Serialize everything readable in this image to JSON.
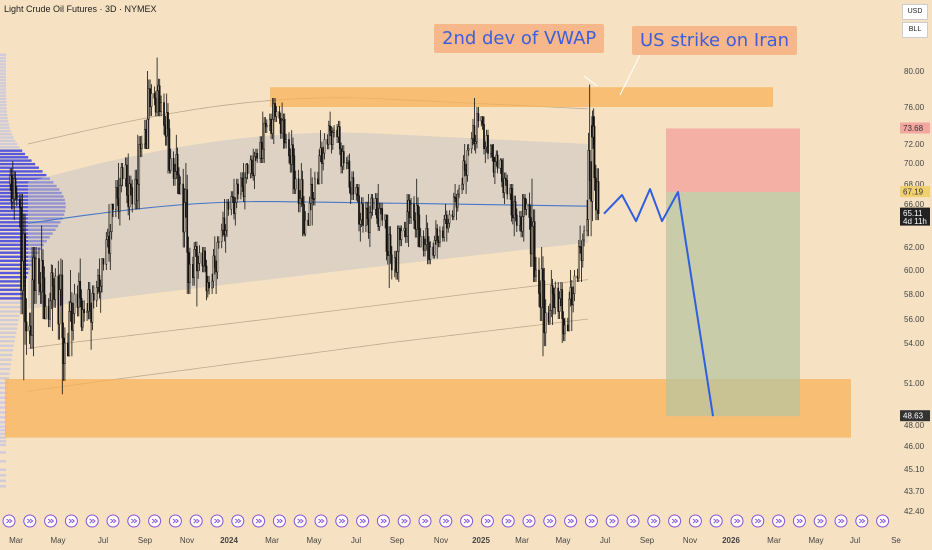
{
  "header": {
    "title": "Light Crude Oil Futures · 3D · NYMEX"
  },
  "units": {
    "currency": "USD",
    "unit": "BLL"
  },
  "callouts": {
    "vwap_label": "2nd dev of VWAP",
    "strike_label": "US strike on Iran"
  },
  "colors": {
    "background": "#f6e2c2",
    "candle": "#111111",
    "volume_profile": "#3b3fe0",
    "vwap_band": "#c8c4c4",
    "vwap_line": "#4a78c8",
    "resistance_zone": "#f8b25a",
    "support_zone": "#f8b25a",
    "stop_zone": "#f3a7a0",
    "target_zone": "#b9c49f",
    "projection_line": "#2f5fe0",
    "callout_bg": "#f6b78a",
    "callout_text": "#3d5fd8"
  },
  "chart_data": {
    "type": "candlestick",
    "y_axis": {
      "ticks": [
        80.0,
        76.0,
        72.0,
        70.0,
        68.0,
        66.0,
        62.0,
        60.0,
        58.0,
        56.0,
        54.0,
        51.0,
        48.0,
        46.0,
        45.1,
        43.7,
        42.4
      ],
      "tick_labels": [
        "80.00",
        "76.00",
        "72.00",
        "70.00",
        "68.00",
        "66.00",
        "62.00",
        "60.00",
        "58.00",
        "56.00",
        "54.00",
        "51.00",
        "48.00",
        "46.00",
        "45.10",
        "43.70",
        "42.40"
      ],
      "range": [
        41.5,
        84.0
      ]
    },
    "x_axis": {
      "labels": [
        "Mar",
        "May",
        "Jul",
        "Sep",
        "Nov",
        "2024",
        "Mar",
        "May",
        "Jul",
        "Sep",
        "Nov",
        "2025",
        "Mar",
        "May",
        "Jul",
        "Sep",
        "Nov",
        "2026",
        "Mar",
        "May",
        "Jul",
        "Se"
      ]
    },
    "price_tags": [
      {
        "label": "73.68",
        "value": 73.68,
        "bg": "#f3a7a0",
        "fg": "#333333"
      },
      {
        "label": "67.19",
        "value": 67.19,
        "bg": "#f0d070",
        "fg": "#333333"
      },
      {
        "label": "65.11",
        "value": 65.11,
        "bg": "#222222",
        "fg": "#ffffff",
        "sub": "4d 11h"
      },
      {
        "label": "48.63",
        "value": 48.63,
        "bg": "#333333",
        "fg": "#ffffff"
      }
    ],
    "zones": {
      "resistance": {
        "from": 76.0,
        "to": 78.2
      },
      "support": {
        "from": 46.8,
        "to": 51.3
      },
      "stop": {
        "from": 67.19,
        "to": 73.68
      },
      "target": {
        "from": 48.63,
        "to": 67.19
      }
    },
    "projection_path": [
      65.1,
      66.9,
      64.4,
      67.5,
      64.4,
      67.2,
      48.63
    ],
    "candles": [
      {
        "t": "2023-03-01",
        "o": 68.0,
        "h": 70.2,
        "l": 64.5,
        "c": 66.5
      },
      {
        "t": "2023-03-15",
        "o": 66.5,
        "h": 67.0,
        "l": 51.2,
        "c": 55.0
      },
      {
        "t": "2023-03-29",
        "o": 55.0,
        "h": 62.0,
        "l": 53.0,
        "c": 61.0
      },
      {
        "t": "2023-04-12",
        "o": 61.0,
        "h": 64.0,
        "l": 56.0,
        "c": 57.0
      },
      {
        "t": "2023-04-26",
        "o": 57.0,
        "h": 60.5,
        "l": 55.0,
        "c": 59.5
      },
      {
        "t": "2023-05-10",
        "o": 59.5,
        "h": 61.0,
        "l": 50.2,
        "c": 54.0
      },
      {
        "t": "2023-05-24",
        "o": 54.0,
        "h": 60.0,
        "l": 53.0,
        "c": 58.0
      },
      {
        "t": "2023-06-07",
        "o": 58.0,
        "h": 61.0,
        "l": 55.0,
        "c": 56.5
      },
      {
        "t": "2023-06-21",
        "o": 56.5,
        "h": 59.0,
        "l": 53.5,
        "c": 57.5
      },
      {
        "t": "2023-07-05",
        "o": 57.5,
        "h": 61.0,
        "l": 56.5,
        "c": 60.5
      },
      {
        "t": "2023-07-19",
        "o": 60.5,
        "h": 66.0,
        "l": 60.0,
        "c": 65.5
      },
      {
        "t": "2023-08-02",
        "o": 65.5,
        "h": 70.0,
        "l": 64.0,
        "c": 68.5
      },
      {
        "t": "2023-08-16",
        "o": 68.5,
        "h": 71.0,
        "l": 64.5,
        "c": 66.0
      },
      {
        "t": "2023-08-30",
        "o": 66.0,
        "h": 73.0,
        "l": 65.5,
        "c": 72.0
      },
      {
        "t": "2023-09-13",
        "o": 72.0,
        "h": 80.0,
        "l": 71.5,
        "c": 77.5
      },
      {
        "t": "2023-09-27",
        "o": 77.5,
        "h": 81.5,
        "l": 75.0,
        "c": 76.5
      },
      {
        "t": "2023-10-11",
        "o": 76.5,
        "h": 77.5,
        "l": 69.0,
        "c": 70.5
      },
      {
        "t": "2023-10-25",
        "o": 70.5,
        "h": 73.0,
        "l": 67.0,
        "c": 68.0
      },
      {
        "t": "2023-11-08",
        "o": 68.0,
        "h": 70.0,
        "l": 58.0,
        "c": 60.5
      },
      {
        "t": "2023-11-22",
        "o": 60.5,
        "h": 62.5,
        "l": 57.0,
        "c": 61.5
      },
      {
        "t": "2023-12-06",
        "o": 61.5,
        "h": 62.0,
        "l": 57.5,
        "c": 58.5
      },
      {
        "t": "2023-12-20",
        "o": 58.5,
        "h": 63.0,
        "l": 58.0,
        "c": 62.5
      },
      {
        "t": "2024-01-03",
        "o": 62.5,
        "h": 66.5,
        "l": 61.5,
        "c": 65.5
      },
      {
        "t": "2024-01-17",
        "o": 65.5,
        "h": 68.5,
        "l": 64.0,
        "c": 67.0
      },
      {
        "t": "2024-01-31",
        "o": 67.0,
        "h": 70.0,
        "l": 65.5,
        "c": 69.0
      },
      {
        "t": "2024-02-14",
        "o": 69.0,
        "h": 71.5,
        "l": 67.5,
        "c": 70.5
      },
      {
        "t": "2024-02-28",
        "o": 70.5,
        "h": 75.5,
        "l": 70.0,
        "c": 74.0
      },
      {
        "t": "2024-03-13",
        "o": 74.0,
        "h": 77.0,
        "l": 72.0,
        "c": 75.5
      },
      {
        "t": "2024-03-27",
        "o": 75.5,
        "h": 76.5,
        "l": 71.5,
        "c": 72.5
      },
      {
        "t": "2024-04-10",
        "o": 72.5,
        "h": 73.5,
        "l": 67.0,
        "c": 68.5
      },
      {
        "t": "2024-04-24",
        "o": 68.5,
        "h": 70.0,
        "l": 63.0,
        "c": 64.5
      },
      {
        "t": "2024-05-08",
        "o": 64.5,
        "h": 69.5,
        "l": 64.0,
        "c": 68.5
      },
      {
        "t": "2024-05-22",
        "o": 68.5,
        "h": 73.5,
        "l": 68.0,
        "c": 72.5
      },
      {
        "t": "2024-06-05",
        "o": 72.5,
        "h": 75.5,
        "l": 71.0,
        "c": 73.5
      },
      {
        "t": "2024-06-19",
        "o": 73.5,
        "h": 74.5,
        "l": 69.0,
        "c": 70.0
      },
      {
        "t": "2024-07-03",
        "o": 70.0,
        "h": 71.0,
        "l": 66.0,
        "c": 67.0
      },
      {
        "t": "2024-07-17",
        "o": 67.0,
        "h": 68.0,
        "l": 62.5,
        "c": 64.0
      },
      {
        "t": "2024-07-31",
        "o": 64.0,
        "h": 67.0,
        "l": 62.0,
        "c": 65.5
      },
      {
        "t": "2024-08-14",
        "o": 65.5,
        "h": 68.0,
        "l": 63.5,
        "c": 64.5
      },
      {
        "t": "2024-08-28",
        "o": 64.5,
        "h": 65.0,
        "l": 58.5,
        "c": 60.0
      },
      {
        "t": "2024-09-11",
        "o": 60.0,
        "h": 64.0,
        "l": 59.0,
        "c": 63.5
      },
      {
        "t": "2024-09-25",
        "o": 63.5,
        "h": 67.0,
        "l": 62.0,
        "c": 66.0
      },
      {
        "t": "2024-10-09",
        "o": 66.0,
        "h": 68.5,
        "l": 62.0,
        "c": 63.0
      },
      {
        "t": "2024-10-23",
        "o": 63.0,
        "h": 65.0,
        "l": 60.5,
        "c": 62.0
      },
      {
        "t": "2024-11-06",
        "o": 62.0,
        "h": 64.5,
        "l": 61.0,
        "c": 63.5
      },
      {
        "t": "2024-11-20",
        "o": 63.5,
        "h": 66.0,
        "l": 62.5,
        "c": 65.0
      },
      {
        "t": "2024-12-04",
        "o": 65.0,
        "h": 68.0,
        "l": 64.5,
        "c": 67.5
      },
      {
        "t": "2024-12-18",
        "o": 67.5,
        "h": 72.0,
        "l": 67.0,
        "c": 71.5
      },
      {
        "t": "2025-01-01",
        "o": 71.5,
        "h": 77.0,
        "l": 71.0,
        "c": 74.5
      },
      {
        "t": "2025-01-15",
        "o": 74.5,
        "h": 75.0,
        "l": 70.0,
        "c": 71.0
      },
      {
        "t": "2025-01-29",
        "o": 71.0,
        "h": 72.0,
        "l": 68.0,
        "c": 69.5
      },
      {
        "t": "2025-02-12",
        "o": 69.5,
        "h": 70.5,
        "l": 66.0,
        "c": 67.0
      },
      {
        "t": "2025-02-26",
        "o": 67.0,
        "h": 68.0,
        "l": 63.0,
        "c": 64.0
      },
      {
        "t": "2025-03-12",
        "o": 64.0,
        "h": 67.0,
        "l": 62.5,
        "c": 66.0
      },
      {
        "t": "2025-03-26",
        "o": 66.0,
        "h": 68.5,
        "l": 59.0,
        "c": 60.0
      },
      {
        "t": "2025-04-09",
        "o": 60.0,
        "h": 62.0,
        "l": 53.0,
        "c": 56.5
      },
      {
        "t": "2025-04-23",
        "o": 56.5,
        "h": 60.0,
        "l": 55.5,
        "c": 58.5
      },
      {
        "t": "2025-05-07",
        "o": 58.5,
        "h": 59.0,
        "l": 54.0,
        "c": 55.5
      },
      {
        "t": "2025-05-21",
        "o": 55.5,
        "h": 60.0,
        "l": 55.0,
        "c": 59.5
      },
      {
        "t": "2025-06-04",
        "o": 59.5,
        "h": 64.0,
        "l": 59.0,
        "c": 63.5
      },
      {
        "t": "2025-06-18",
        "o": 63.5,
        "h": 78.5,
        "l": 63.0,
        "c": 74.0
      },
      {
        "t": "2025-06-25",
        "o": 74.0,
        "h": 75.0,
        "l": 64.5,
        "c": 65.1
      }
    ]
  }
}
